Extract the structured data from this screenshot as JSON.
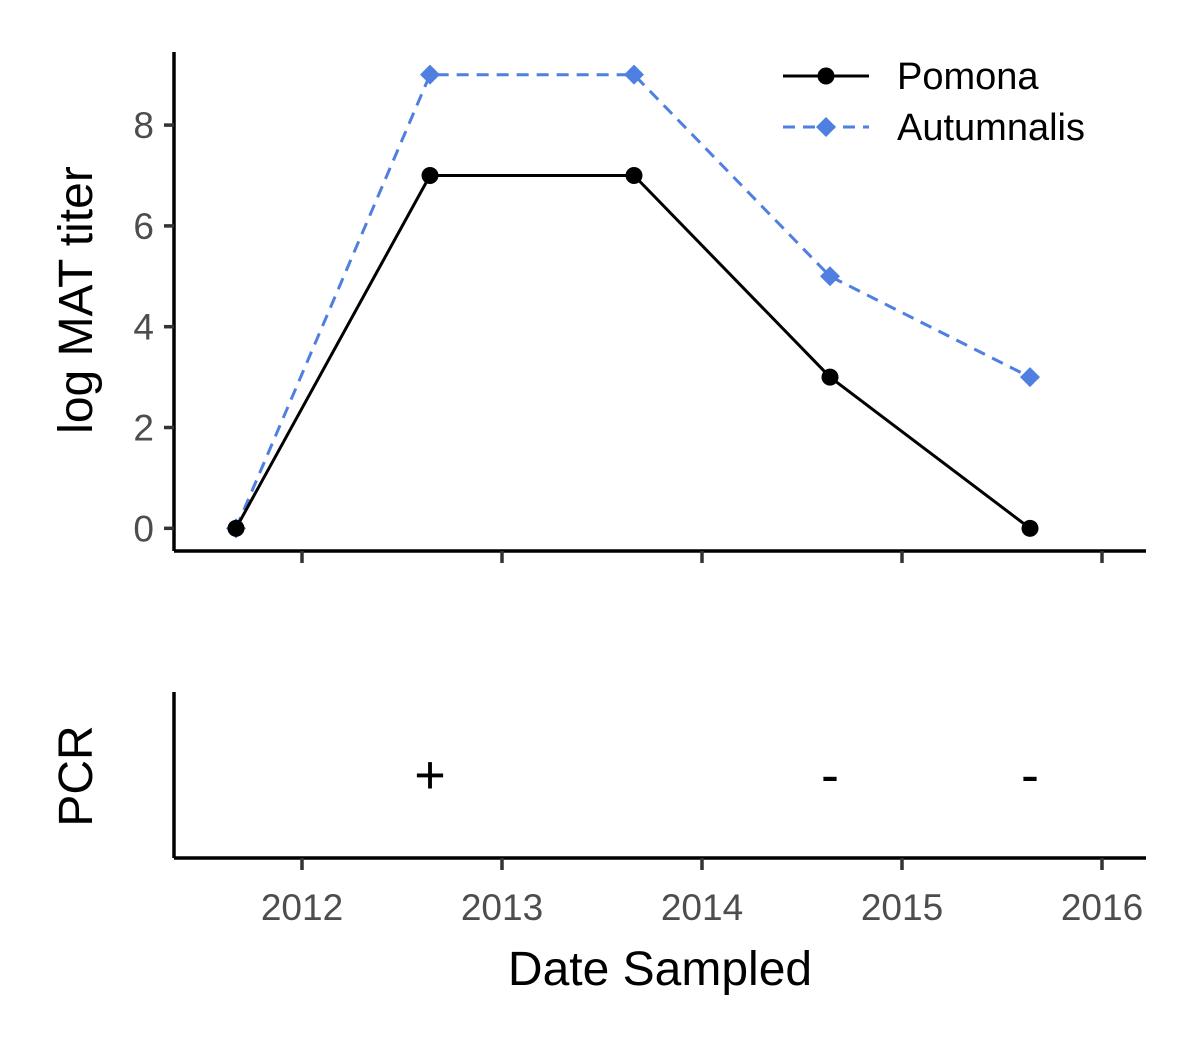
{
  "chart_data": [
    {
      "type": "line",
      "ylabel": "log MAT titer",
      "ylim": [
        -0.45,
        9.45
      ],
      "yticks": [
        0,
        2,
        4,
        6,
        8
      ],
      "xlim": [
        2011.36,
        2016.22
      ],
      "xticks": [
        2012,
        2013,
        2014,
        2015,
        2016
      ],
      "grid": false,
      "legend_position": "top-right",
      "series": [
        {
          "name": "Pomona",
          "color": "#000000",
          "line_style": "solid",
          "marker": "circle",
          "x": [
            2011.67,
            2012.64,
            2013.66,
            2014.64,
            2015.64
          ],
          "values": [
            0,
            7,
            7,
            3,
            0
          ]
        },
        {
          "name": "Autumnalis",
          "color": "#4f7fe0",
          "line_style": "dashed",
          "marker": "diamond",
          "x": [
            2011.67,
            2012.64,
            2013.66,
            2014.64,
            2015.64
          ],
          "values": [
            0,
            9,
            9,
            5,
            3
          ]
        }
      ]
    },
    {
      "type": "scatter",
      "ylabel": "PCR",
      "xlabel": "Date Sampled",
      "xlim": [
        2011.36,
        2016.22
      ],
      "xticks": [
        2012,
        2013,
        2014,
        2015,
        2016
      ],
      "points": [
        {
          "x": 2012.64,
          "label": "+"
        },
        {
          "x": 2014.64,
          "label": "-"
        },
        {
          "x": 2015.64,
          "label": "-"
        }
      ]
    }
  ]
}
